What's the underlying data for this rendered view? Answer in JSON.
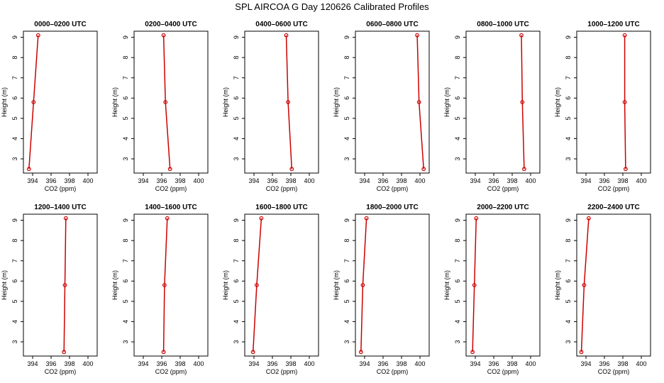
{
  "figure": {
    "title": "SPL AIRCOA G  Day 120626  Calibrated Profiles"
  },
  "colors": {
    "line": "#cc0000",
    "marker": "#cc0000",
    "axis": "#000000"
  },
  "chart_data": [
    {
      "type": "line",
      "title": "0000–0200 UTC",
      "xlabel": "CO2 (ppm)",
      "ylabel": "Height (m)",
      "xlim": [
        393,
        401
      ],
      "ylim": [
        2.3,
        9.3
      ],
      "xticks": [
        394,
        396,
        398,
        400
      ],
      "yticks": [
        3,
        4,
        5,
        6,
        7,
        8,
        9
      ],
      "grid": false,
      "series": [
        {
          "x": [
            393.6,
            394.1,
            394.6
          ],
          "y": [
            2.5,
            5.8,
            9.1
          ]
        }
      ]
    },
    {
      "type": "line",
      "title": "0200–0400 UTC",
      "xlabel": "CO2 (ppm)",
      "ylabel": "Height (m)",
      "xlim": [
        393,
        401
      ],
      "ylim": [
        2.3,
        9.3
      ],
      "xticks": [
        394,
        396,
        398,
        400
      ],
      "yticks": [
        3,
        4,
        5,
        6,
        7,
        8,
        9
      ],
      "grid": false,
      "series": [
        {
          "x": [
            396.9,
            396.4,
            396.2
          ],
          "y": [
            2.5,
            5.8,
            9.1
          ]
        }
      ]
    },
    {
      "type": "line",
      "title": "0400–0600 UTC",
      "xlabel": "CO2 (ppm)",
      "ylabel": "Height (m)",
      "xlim": [
        393,
        401
      ],
      "ylim": [
        2.3,
        9.3
      ],
      "xticks": [
        394,
        396,
        398,
        400
      ],
      "yticks": [
        3,
        4,
        5,
        6,
        7,
        8,
        9
      ],
      "grid": false,
      "series": [
        {
          "x": [
            398.1,
            397.7,
            397.5
          ],
          "y": [
            2.5,
            5.8,
            9.1
          ]
        }
      ]
    },
    {
      "type": "line",
      "title": "0600–0800 UTC",
      "xlabel": "CO2 (ppm)",
      "ylabel": "Height (m)",
      "xlim": [
        393,
        401
      ],
      "ylim": [
        2.3,
        9.3
      ],
      "xticks": [
        394,
        396,
        398,
        400
      ],
      "yticks": [
        3,
        4,
        5,
        6,
        7,
        8,
        9
      ],
      "grid": false,
      "series": [
        {
          "x": [
            400.4,
            399.9,
            399.7
          ],
          "y": [
            2.5,
            5.8,
            9.1
          ]
        }
      ]
    },
    {
      "type": "line",
      "title": "0800–1000 UTC",
      "xlabel": "CO2 (ppm)",
      "ylabel": "Height (m)",
      "xlim": [
        393,
        401
      ],
      "ylim": [
        2.3,
        9.3
      ],
      "xticks": [
        394,
        396,
        398,
        400
      ],
      "yticks": [
        3,
        4,
        5,
        6,
        7,
        8,
        9
      ],
      "grid": false,
      "series": [
        {
          "x": [
            399.3,
            399.1,
            399.0
          ],
          "y": [
            2.5,
            5.8,
            9.1
          ]
        }
      ]
    },
    {
      "type": "line",
      "title": "1000–1200 UTC",
      "xlabel": "CO2 (ppm)",
      "ylabel": "Height (m)",
      "xlim": [
        393,
        401
      ],
      "ylim": [
        2.3,
        9.3
      ],
      "xticks": [
        394,
        396,
        398,
        400
      ],
      "yticks": [
        3,
        4,
        5,
        6,
        7,
        8,
        9
      ],
      "grid": false,
      "series": [
        {
          "x": [
            398.3,
            398.2,
            398.2
          ],
          "y": [
            2.5,
            5.8,
            9.1
          ]
        }
      ]
    },
    {
      "type": "line",
      "title": "1200–1400 UTC",
      "xlabel": "CO2 (ppm)",
      "ylabel": "Height (m)",
      "xlim": [
        393,
        401
      ],
      "ylim": [
        2.3,
        9.3
      ],
      "xticks": [
        394,
        396,
        398,
        400
      ],
      "yticks": [
        3,
        4,
        5,
        6,
        7,
        8,
        9
      ],
      "grid": false,
      "series": [
        {
          "x": [
            397.4,
            397.5,
            397.6
          ],
          "y": [
            2.5,
            5.8,
            9.1
          ]
        }
      ]
    },
    {
      "type": "line",
      "title": "1400–1600 UTC",
      "xlabel": "CO2 (ppm)",
      "ylabel": "Height (m)",
      "xlim": [
        393,
        401
      ],
      "ylim": [
        2.3,
        9.3
      ],
      "xticks": [
        394,
        396,
        398,
        400
      ],
      "yticks": [
        3,
        4,
        5,
        6,
        7,
        8,
        9
      ],
      "grid": false,
      "series": [
        {
          "x": [
            396.2,
            396.3,
            396.6
          ],
          "y": [
            2.5,
            5.8,
            9.1
          ]
        }
      ]
    },
    {
      "type": "line",
      "title": "1600–1800 UTC",
      "xlabel": "CO2 (ppm)",
      "ylabel": "Height (m)",
      "xlim": [
        393,
        401
      ],
      "ylim": [
        2.3,
        9.3
      ],
      "xticks": [
        394,
        396,
        398,
        400
      ],
      "yticks": [
        3,
        4,
        5,
        6,
        7,
        8,
        9
      ],
      "grid": false,
      "series": [
        {
          "x": [
            393.9,
            394.3,
            394.8
          ],
          "y": [
            2.5,
            5.8,
            9.1
          ]
        }
      ]
    },
    {
      "type": "line",
      "title": "1800–2000 UTC",
      "xlabel": "CO2 (ppm)",
      "ylabel": "Height (m)",
      "xlim": [
        393,
        401
      ],
      "ylim": [
        2.3,
        9.3
      ],
      "xticks": [
        394,
        396,
        398,
        400
      ],
      "yticks": [
        3,
        4,
        5,
        6,
        7,
        8,
        9
      ],
      "grid": false,
      "series": [
        {
          "x": [
            393.6,
            393.8,
            394.2
          ],
          "y": [
            2.5,
            5.8,
            9.1
          ]
        }
      ]
    },
    {
      "type": "line",
      "title": "2000–2200 UTC",
      "xlabel": "CO2 (ppm)",
      "ylabel": "Height (m)",
      "xlim": [
        393,
        401
      ],
      "ylim": [
        2.3,
        9.3
      ],
      "xticks": [
        394,
        396,
        398,
        400
      ],
      "yticks": [
        3,
        4,
        5,
        6,
        7,
        8,
        9
      ],
      "grid": false,
      "series": [
        {
          "x": [
            393.7,
            393.9,
            394.1
          ],
          "y": [
            2.5,
            5.8,
            9.1
          ]
        }
      ]
    },
    {
      "type": "line",
      "title": "2200–2400 UTC",
      "xlabel": "CO2 (ppm)",
      "ylabel": "Height (m)",
      "xlim": [
        393,
        401
      ],
      "ylim": [
        2.3,
        9.3
      ],
      "xticks": [
        394,
        396,
        398,
        400
      ],
      "yticks": [
        3,
        4,
        5,
        6,
        7,
        8,
        9
      ],
      "grid": false,
      "series": [
        {
          "x": [
            393.5,
            393.8,
            394.3
          ],
          "y": [
            2.5,
            5.8,
            9.1
          ]
        }
      ]
    }
  ]
}
